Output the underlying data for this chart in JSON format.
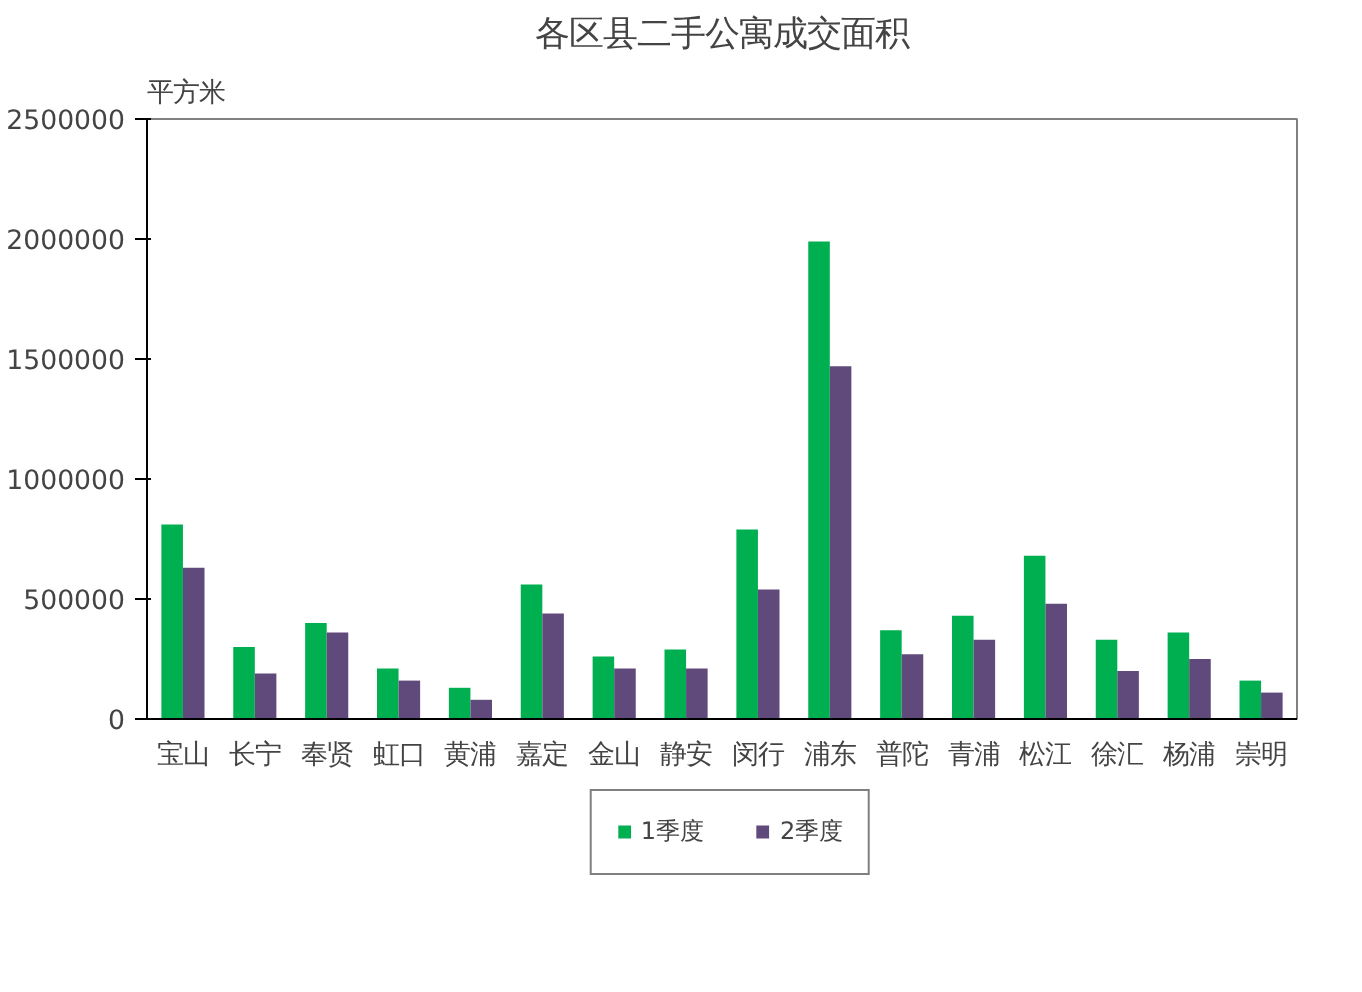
{
  "chart_data": {
    "type": "bar",
    "title": "各区县二手公寓成交面积",
    "ylabel": "平方米",
    "categories": [
      "宝山",
      "长宁",
      "奉贤",
      "虹口",
      "黄浦",
      "嘉定",
      "金山",
      "静安",
      "闵行",
      "浦东",
      "普陀",
      "青浦",
      "松江",
      "徐汇",
      "杨浦",
      "崇明"
    ],
    "series": [
      {
        "name": "1季度",
        "color": "#00b050",
        "values": [
          810000,
          300000,
          400000,
          210000,
          130000,
          560000,
          260000,
          290000,
          790000,
          1990000,
          370000,
          430000,
          680000,
          330000,
          360000,
          160000
        ]
      },
      {
        "name": "2季度",
        "color": "#604a7b",
        "values": [
          630000,
          190000,
          360000,
          160000,
          80000,
          440000,
          210000,
          210000,
          540000,
          1470000,
          270000,
          330000,
          480000,
          200000,
          250000,
          110000
        ]
      }
    ],
    "ylim": [
      0,
      2500000
    ],
    "yticks": [
      0,
      500000,
      1000000,
      1500000,
      2000000,
      2500000
    ],
    "grid": false,
    "legend": "bottom"
  }
}
